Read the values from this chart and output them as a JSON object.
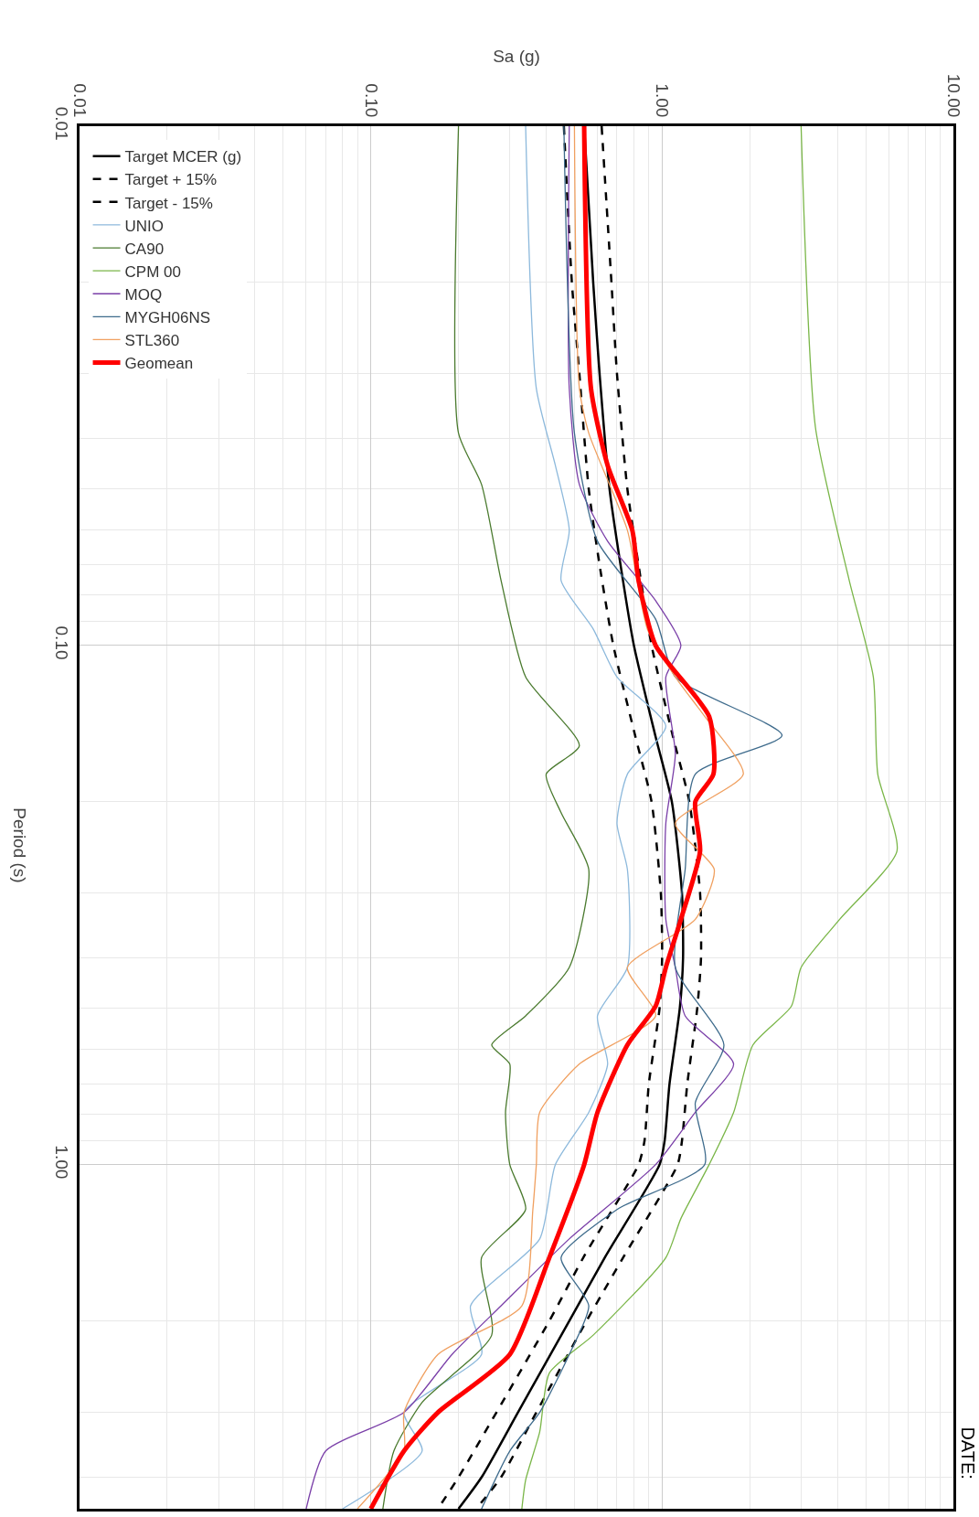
{
  "chart_data": {
    "type": "line",
    "xlabel": "Sa (g)",
    "ylabel": "Period (s)",
    "log": "xy",
    "grid": true,
    "legend": "top left",
    "xlim": [
      0.01,
      10
    ],
    "xticks": [
      {
        "value": 0.01,
        "label": "0.01"
      },
      {
        "value": 0.1,
        "label": "0.10"
      },
      {
        "value": 1,
        "label": "1.00"
      },
      {
        "value": 10,
        "label": "10.00"
      }
    ],
    "ylim": [
      4.6,
      0.01
    ],
    "yticks": [
      {
        "value": 0.01,
        "label": "0.01"
      },
      {
        "value": 0.1,
        "label": "0.10"
      },
      {
        "value": 1,
        "label": "1.00"
      }
    ],
    "annotations": [
      "DATE:"
    ],
    "series": [
      {
        "name": "Target MCER (g)",
        "color": "#000000",
        "line_style": "solid",
        "x": [
          0.54,
          0.58,
          0.61,
          0.66,
          0.72,
          0.8,
          0.95,
          1.08,
          1.17,
          1.18,
          1.15,
          1.06,
          1.02,
          0.98,
          0.64,
          0.48,
          0.32,
          0.24,
          0.2
        ],
        "values": [
          0.01,
          0.02,
          0.03,
          0.05,
          0.07,
          0.1,
          0.15,
          0.2,
          0.3,
          0.4,
          0.5,
          0.7,
          0.9,
          1.0,
          1.5,
          2,
          3,
          4,
          4.6
        ]
      },
      {
        "name": "Target + 15%",
        "color": "#000000",
        "line_style": "dashed",
        "x": [
          0.62,
          0.67,
          0.7,
          0.76,
          0.83,
          0.92,
          1.09,
          1.24,
          1.35,
          1.36,
          1.32,
          1.22,
          1.17,
          1.13,
          0.74,
          0.55,
          0.37,
          0.28,
          0.23
        ],
        "values": [
          0.01,
          0.02,
          0.03,
          0.05,
          0.07,
          0.1,
          0.15,
          0.2,
          0.3,
          0.4,
          0.5,
          0.7,
          0.9,
          1.0,
          1.5,
          2,
          3,
          4,
          4.6
        ]
      },
      {
        "name": "Target - 15%",
        "color": "#000000",
        "line_style": "dashed",
        "x": [
          0.46,
          0.49,
          0.52,
          0.56,
          0.61,
          0.68,
          0.81,
          0.92,
          0.99,
          1.0,
          0.98,
          0.9,
          0.87,
          0.83,
          0.54,
          0.41,
          0.27,
          0.2,
          0.17
        ],
        "values": [
          0.01,
          0.02,
          0.03,
          0.05,
          0.07,
          0.1,
          0.15,
          0.2,
          0.3,
          0.4,
          0.5,
          0.7,
          0.9,
          1.0,
          1.5,
          2,
          3,
          4,
          4.6
        ]
      },
      {
        "name": "UNIO",
        "color": "#8db9dc",
        "line_style": "solid",
        "x": [
          0.34,
          0.37,
          0.43,
          0.48,
          0.45,
          0.58,
          0.7,
          1.03,
          0.76,
          0.7,
          0.76,
          0.76,
          0.6,
          0.65,
          0.56,
          0.43,
          0.38,
          0.22,
          0.24,
          0.13,
          0.15,
          0.08
        ],
        "values": [
          0.01,
          0.032,
          0.045,
          0.06,
          0.075,
          0.093,
          0.115,
          0.143,
          0.177,
          0.22,
          0.27,
          0.417,
          0.517,
          0.64,
          0.793,
          1.0,
          1.39,
          1.87,
          2.32,
          3.0,
          3.56,
          4.6
        ]
      },
      {
        "name": "CA90",
        "color": "#4a7a2e",
        "line_style": "solid",
        "x": [
          0.2,
          0.2,
          0.24,
          0.28,
          0.34,
          0.52,
          0.4,
          0.45,
          0.56,
          0.48,
          0.34,
          0.26,
          0.3,
          0.29,
          0.3,
          0.34,
          0.24,
          0.26,
          0.15,
          0.12,
          0.11
        ],
        "values": [
          0.01,
          0.039,
          0.049,
          0.075,
          0.115,
          0.156,
          0.177,
          0.21,
          0.27,
          0.417,
          0.517,
          0.588,
          0.64,
          0.793,
          1.0,
          1.22,
          1.51,
          2.13,
          2.87,
          3.56,
          4.6
        ]
      },
      {
        "name": "CPM 00",
        "color": "#7ab648",
        "line_style": "solid",
        "x": [
          3.0,
          3.36,
          4.39,
          5.31,
          5.5,
          6.4,
          4.07,
          3.0,
          2.78,
          2.05,
          1.76,
          1.45,
          1.16,
          1.03,
          0.58,
          0.41,
          0.38,
          0.34,
          0.33
        ],
        "values": [
          0.01,
          0.038,
          0.075,
          0.115,
          0.177,
          0.249,
          0.337,
          0.417,
          0.495,
          0.588,
          0.793,
          1.0,
          1.27,
          1.51,
          2.13,
          2.52,
          3.27,
          4.05,
          4.6
        ]
      },
      {
        "name": "MOQ",
        "color": "#7a3fa8",
        "line_style": "solid",
        "x": [
          0.48,
          0.48,
          0.52,
          0.65,
          0.95,
          1.16,
          1.03,
          1.11,
          1.03,
          1.03,
          1.11,
          1.2,
          1.76,
          1.3,
          0.95,
          0.48,
          0.28,
          0.19,
          0.13,
          0.07,
          0.06
        ],
        "values": [
          0.01,
          0.032,
          0.049,
          0.063,
          0.082,
          0.1,
          0.115,
          0.162,
          0.22,
          0.337,
          0.417,
          0.517,
          0.64,
          0.793,
          1.0,
          1.39,
          1.87,
          2.32,
          3.0,
          3.56,
          4.6
        ]
      },
      {
        "name": "MYGH06NS",
        "color": "#3e6b8c",
        "line_style": "solid",
        "x": [
          0.46,
          0.5,
          0.6,
          0.95,
          1.11,
          2.58,
          1.3,
          1.2,
          1.11,
          1.63,
          1.3,
          1.4,
          0.7,
          0.45,
          0.56,
          0.48,
          0.38,
          0.3,
          0.24
        ],
        "values": [
          0.01,
          0.039,
          0.063,
          0.089,
          0.115,
          0.149,
          0.177,
          0.27,
          0.417,
          0.588,
          0.76,
          1.0,
          1.22,
          1.51,
          1.87,
          2.32,
          3.0,
          3.56,
          4.6
        ]
      },
      {
        "name": "STL360",
        "color": "#f0a060",
        "line_style": "solid",
        "x": [
          0.5,
          0.52,
          0.56,
          0.76,
          0.89,
          1.11,
          1.4,
          1.9,
          1.11,
          1.51,
          1.3,
          0.76,
          0.95,
          0.52,
          0.38,
          0.37,
          0.36,
          0.33,
          0.17,
          0.13,
          0.13,
          0.09
        ],
        "values": [
          0.01,
          0.032,
          0.039,
          0.06,
          0.093,
          0.115,
          0.137,
          0.177,
          0.22,
          0.27,
          0.337,
          0.417,
          0.517,
          0.64,
          0.793,
          1.0,
          1.22,
          1.87,
          2.32,
          3.0,
          3.56,
          4.6
        ]
      },
      {
        "name": "Geomean",
        "color": "#ff0000",
        "line_style": "solid",
        "x": [
          0.54,
          0.57,
          0.65,
          0.79,
          0.83,
          0.95,
          1.45,
          1.5,
          1.3,
          1.35,
          1.16,
          1.03,
          0.95,
          0.76,
          0.6,
          0.54,
          0.41,
          0.3,
          0.17,
          0.13,
          0.1
        ],
        "values": [
          0.01,
          0.032,
          0.045,
          0.06,
          0.075,
          0.1,
          0.137,
          0.177,
          0.2,
          0.249,
          0.337,
          0.417,
          0.495,
          0.588,
          0.793,
          1.0,
          1.51,
          2.32,
          3.0,
          3.56,
          4.6
        ]
      }
    ]
  }
}
